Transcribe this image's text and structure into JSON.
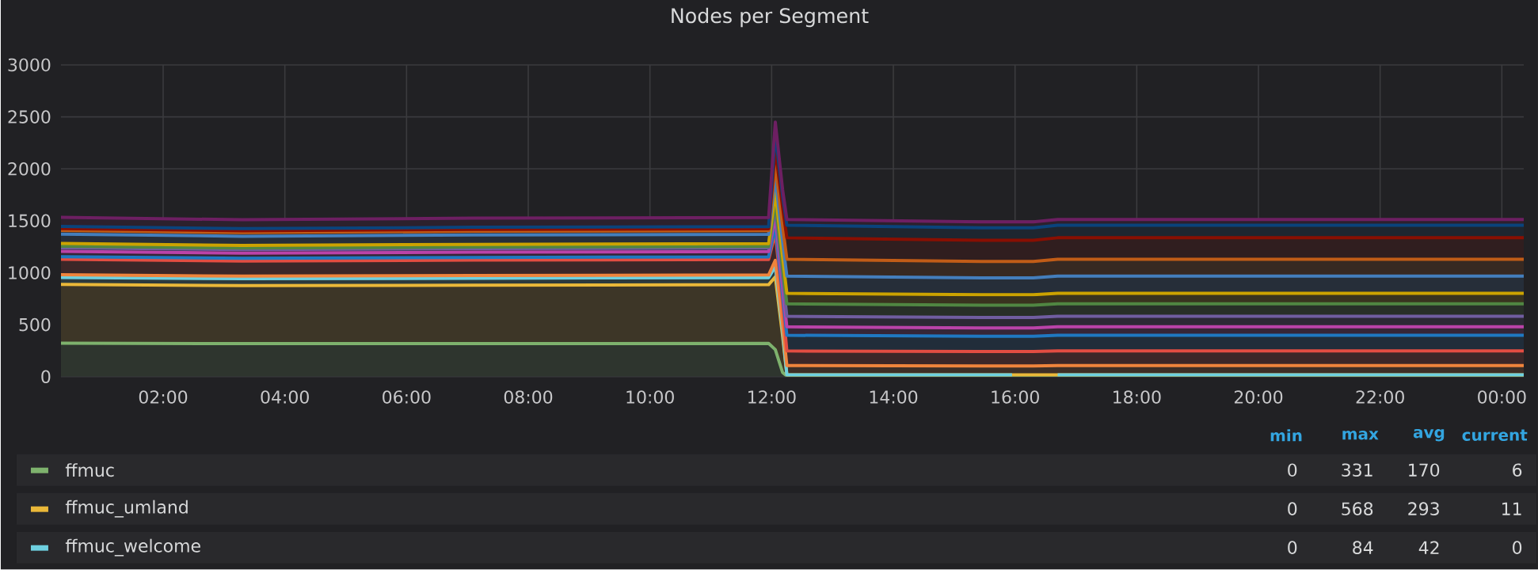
{
  "chart_data": {
    "type": "area",
    "stacked": true,
    "title": "Nodes per Segment",
    "x": [
      0.32,
      3.3,
      7.1,
      11.95,
      12.06,
      12.18,
      12.25,
      15.45,
      15.95,
      16.3,
      16.7,
      24.36
    ],
    "xlim": [
      0.32,
      24.36
    ],
    "xticks": [
      {
        "value": 2,
        "label": "02:00"
      },
      {
        "value": 4,
        "label": "04:00"
      },
      {
        "value": 6,
        "label": "06:00"
      },
      {
        "value": 8,
        "label": "08:00"
      },
      {
        "value": 10,
        "label": "10:00"
      },
      {
        "value": 12,
        "label": "12:00"
      },
      {
        "value": 14,
        "label": "14:00"
      },
      {
        "value": 16,
        "label": "16:00"
      },
      {
        "value": 18,
        "label": "18:00"
      },
      {
        "value": 20,
        "label": "20:00"
      },
      {
        "value": 22,
        "label": "22:00"
      },
      {
        "value": 24,
        "label": "00:00"
      }
    ],
    "ylim": [
      0,
      3000
    ],
    "yticks": [
      0,
      500,
      1000,
      1500,
      2000,
      2500,
      3000
    ],
    "grid": true,
    "legend": "bottom",
    "series": [
      {
        "name": "ffmuc",
        "color": "#7eb26d",
        "values": [
          322,
          318,
          318,
          320,
          260,
          40,
          6,
          6,
          6,
          6,
          6,
          6
        ]
      },
      {
        "name": "ffmuc_umland",
        "color": "#eab839",
        "values": [
          565,
          558,
          562,
          565,
          700,
          350,
          11,
          11,
          11,
          11,
          11,
          11
        ]
      },
      {
        "name": "ffmuc_welcome",
        "color": "#6ed0e0",
        "values": [
          68,
          66,
          67,
          68,
          100,
          50,
          0,
          0,
          0,
          null,
          0,
          0
        ]
      },
      {
        "color": "#ef843c",
        "values": [
          25,
          25,
          26,
          25,
          60,
          60,
          89,
          86,
          86,
          86,
          89,
          89
        ]
      },
      {
        "color": "#e24d42",
        "values": [
          149,
          146,
          148,
          149,
          260,
          200,
          141,
          138,
          138,
          138,
          141,
          141
        ]
      },
      {
        "color": "#1f78c1",
        "values": [
          26,
          26,
          26,
          26,
          60,
          80,
          151,
          148,
          148,
          148,
          151,
          151
        ]
      },
      {
        "color": "#ba43a9",
        "values": [
          50,
          49,
          50,
          50,
          100,
          80,
          81,
          80,
          80,
          80,
          81,
          81
        ]
      },
      {
        "color": "#705da0",
        "values": [
          35,
          34,
          35,
          35,
          80,
          90,
          101,
          100,
          100,
          100,
          101,
          101
        ]
      },
      {
        "color": "#508642",
        "values": [
          15,
          15,
          15,
          15,
          60,
          100,
          121,
          119,
          119,
          119,
          121,
          121
        ]
      },
      {
        "color": "#cca300",
        "values": [
          26,
          26,
          26,
          26,
          90,
          100,
          101,
          100,
          100,
          100,
          101,
          101
        ]
      },
      {
        "color": "#447ebc",
        "values": [
          90,
          88,
          90,
          90,
          150,
          150,
          166,
          163,
          163,
          163,
          166,
          166
        ]
      },
      {
        "color": "#c15c17",
        "values": [
          36,
          35,
          36,
          36,
          120,
          150,
          161,
          158,
          158,
          158,
          161,
          161
        ]
      },
      {
        "color": "#890f02",
        "values": [
          18,
          18,
          18,
          18,
          150,
          180,
          207,
          204,
          204,
          204,
          207,
          207
        ]
      },
      {
        "color": "#0a437c",
        "values": [
          20,
          20,
          20,
          20,
          140,
          110,
          121,
          120,
          120,
          120,
          121,
          121
        ]
      },
      {
        "color": "#6d1f62",
        "values": [
          88,
          86,
          88,
          88,
          120,
          60,
          56,
          56,
          56,
          56,
          56,
          56
        ]
      }
    ],
    "annotations": [
      "min",
      "max",
      "avg",
      "current",
      "0",
      "331",
      "170",
      "6",
      "0",
      "568",
      "293",
      "11",
      "0",
      "84",
      "42",
      "0"
    ]
  }
}
